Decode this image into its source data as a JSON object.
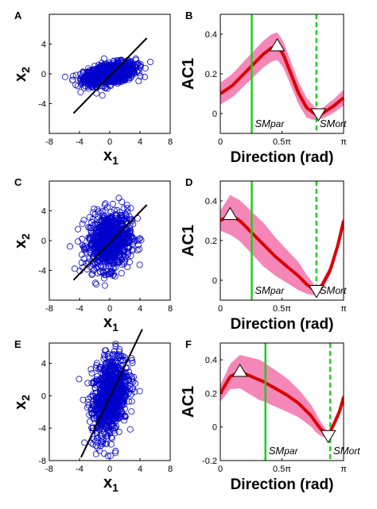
{
  "chart_data": [
    {
      "panel": "A",
      "type": "scatter",
      "ylabel": "x",
      "ylabel_sub": "2",
      "xlabel": "x",
      "xlabel_sub": "1",
      "xlim": [
        -8,
        8
      ],
      "ylim": [
        -8,
        8
      ],
      "xticks": [
        "-8",
        "-4",
        "0",
        "4",
        "8"
      ],
      "yticks": [
        "-4",
        "0",
        "4"
      ],
      "marker_color": "#0000cc",
      "line_color": "#000000",
      "spread": {
        "sx": 1.7,
        "sy": 0.75,
        "rho": 0.45
      },
      "fit_line": {
        "x": [
          -4.8,
          4.9
        ],
        "y": [
          -5.3,
          4.8
        ]
      }
    },
    {
      "panel": "B",
      "type": "line",
      "ylabel": "AC1",
      "xlabel": "Direction (rad)",
      "xlim": [
        0,
        3.1416
      ],
      "ylim": [
        -0.1,
        0.5
      ],
      "xticks": [
        "0",
        "0.5π",
        "π"
      ],
      "yticks": [
        "0",
        "0.2",
        "0.4"
      ],
      "line_color": "#dd0000",
      "band_color": "#f47ab0",
      "mean": {
        "x": [
          0,
          0.3,
          0.6,
          0.9,
          1.1,
          1.3,
          1.45,
          1.6,
          1.8,
          2.0,
          2.2,
          2.4,
          2.6,
          2.9,
          3.1416
        ],
        "y": [
          0.1,
          0.14,
          0.2,
          0.26,
          0.3,
          0.33,
          0.34,
          0.3,
          0.2,
          0.1,
          0.03,
          0.0,
          0.0,
          0.04,
          0.08
        ]
      },
      "band_halfwidth": {
        "x": [
          0,
          0.8,
          1.45,
          2.2,
          2.5,
          3.1416
        ],
        "y": [
          0.055,
          0.065,
          0.07,
          0.05,
          0.025,
          0.04
        ]
      },
      "max_marker": {
        "x": 1.45,
        "y": 0.34
      },
      "min_marker": {
        "x": 2.5,
        "y": 0.0
      },
      "sm_par": {
        "x": 0.8,
        "label": "SM",
        "label_sub": "par"
      },
      "sm_ort": {
        "x": 2.45,
        "label": "SM",
        "label_sub": "ort"
      }
    },
    {
      "panel": "C",
      "type": "scatter",
      "ylabel": "x",
      "ylabel_sub": "2",
      "xlabel": "x",
      "xlabel_sub": "1",
      "xlim": [
        -8,
        8
      ],
      "ylim": [
        -8,
        8
      ],
      "xticks": [
        "-8",
        "-4",
        "0",
        "4",
        "8"
      ],
      "yticks": [
        "-4",
        "0",
        "4"
      ],
      "marker_color": "#0000cc",
      "line_color": "#000000",
      "spread": {
        "sx": 1.4,
        "sy": 1.9,
        "rho": 0.15
      },
      "fit_line": {
        "x": [
          -4.8,
          4.9
        ],
        "y": [
          -5.3,
          4.8
        ]
      }
    },
    {
      "panel": "D",
      "type": "line",
      "ylabel": "AC1",
      "xlabel": "Direction (rad)",
      "xlim": [
        0,
        3.1416
      ],
      "ylim": [
        -0.1,
        0.5
      ],
      "xticks": [
        "0",
        "0.5π",
        "π"
      ],
      "yticks": [
        "0",
        "0.2",
        "0.4"
      ],
      "line_color": "#dd0000",
      "band_color": "#f47ab0",
      "mean": {
        "x": [
          0,
          0.25,
          0.5,
          0.8,
          1.1,
          1.4,
          1.7,
          2.0,
          2.2,
          2.4,
          2.55,
          2.8,
          3.0,
          3.1416
        ],
        "y": [
          0.3,
          0.33,
          0.3,
          0.24,
          0.18,
          0.12,
          0.07,
          0.02,
          -0.02,
          -0.05,
          -0.04,
          0.05,
          0.18,
          0.3
        ]
      },
      "band_halfwidth": {
        "x": [
          0,
          0.25,
          1.1,
          2.0,
          2.45,
          3.1416
        ],
        "y": [
          0.05,
          0.1,
          0.11,
          0.07,
          0.02,
          0.025
        ]
      },
      "max_marker": {
        "x": 0.25,
        "y": 0.33
      },
      "min_marker": {
        "x": 2.45,
        "y": -0.05
      },
      "sm_par": {
        "x": 0.8,
        "label": "SM",
        "label_sub": "par"
      },
      "sm_ort": {
        "x": 2.45,
        "label": "SM",
        "label_sub": "ort"
      }
    },
    {
      "panel": "E",
      "type": "scatter",
      "ylabel": "x",
      "ylabel_sub": "2",
      "xlabel": "x",
      "xlabel_sub": "1",
      "xlim": [
        -8,
        8
      ],
      "ylim": [
        -8,
        6.5
      ],
      "xticks": [
        "-8",
        "-4",
        "0",
        "4",
        "8"
      ],
      "yticks": [
        "-8",
        "-4",
        "0",
        "4"
      ],
      "marker_color": "#0000cc",
      "line_color": "#000000",
      "spread": {
        "sx": 1.2,
        "sy": 2.6,
        "rho": 0.35
      },
      "fit_line": {
        "x": [
          -3.8,
          4.3
        ],
        "y": [
          -7.6,
          8.2
        ]
      }
    },
    {
      "panel": "F",
      "type": "line",
      "ylabel": "AC1",
      "xlabel": "Direction (rad)",
      "xlim": [
        0,
        3.1416
      ],
      "ylim": [
        -0.2,
        0.5
      ],
      "xticks": [
        "0",
        "0.5π",
        "π"
      ],
      "yticks": [
        "-0.2",
        "0",
        "0.2",
        "0.4"
      ],
      "line_color": "#dd0000",
      "band_color": "#f47ab0",
      "mean": {
        "x": [
          0,
          0.25,
          0.5,
          0.8,
          1.1,
          1.4,
          1.7,
          2.0,
          2.3,
          2.55,
          2.75,
          2.9,
          3.05,
          3.1416
        ],
        "y": [
          0.2,
          0.3,
          0.33,
          0.3,
          0.27,
          0.23,
          0.19,
          0.14,
          0.07,
          -0.01,
          -0.05,
          0.02,
          0.1,
          0.18
        ]
      },
      "band_halfwidth": {
        "x": [
          0,
          0.5,
          1.0,
          1.7,
          2.4,
          2.75,
          3.1416
        ],
        "y": [
          0.05,
          0.1,
          0.12,
          0.1,
          0.06,
          0.02,
          0.025
        ]
      },
      "max_marker": {
        "x": 0.5,
        "y": 0.33
      },
      "min_marker": {
        "x": 2.75,
        "y": -0.05
      },
      "sm_par": {
        "x": 1.15,
        "label": "SM",
        "label_sub": "par"
      },
      "sm_ort": {
        "x": 2.8,
        "label": "SM",
        "label_sub": "ort"
      }
    }
  ]
}
